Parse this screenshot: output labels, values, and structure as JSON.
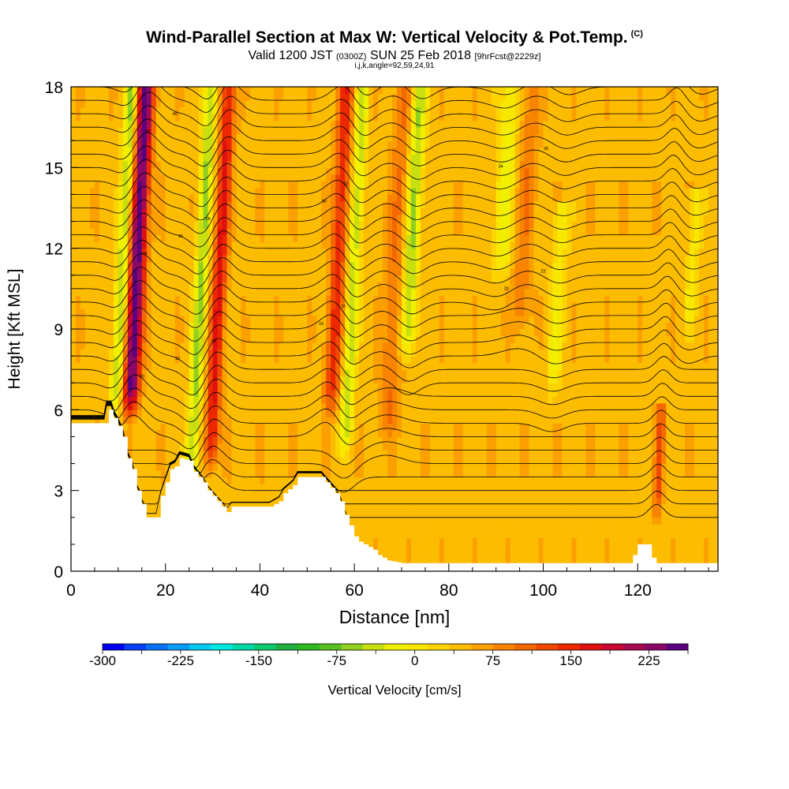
{
  "title": {
    "main": "Wind-Parallel Section at Max W: Vertical Velocity & Pot.Temp.",
    "copyright": "(C)",
    "valid_prefix": "Valid 1200 JST",
    "valid_utc": "(0300Z)",
    "valid_date": "SUN 25 Feb 2018",
    "forecast": "[9hrFcst@2229z]",
    "section_params": "i,j,k,angle=92,59,24,91"
  },
  "chart_data": {
    "type": "heatmap",
    "xlabel": "Distance [nm]",
    "ylabel": "Height [Kft MSL]",
    "xlim": [
      0,
      137
    ],
    "ylim": [
      0,
      18
    ],
    "x_ticks": [
      0,
      20,
      40,
      60,
      80,
      100,
      120
    ],
    "y_ticks": [
      0,
      3,
      6,
      9,
      12,
      15,
      18
    ],
    "colorbar": {
      "label": "Vertical Velocity [cm/s]",
      "range": [
        -300,
        262.5
      ],
      "step": 18.75,
      "tick_labels": [
        "-300",
        "-225",
        "-150",
        "-75",
        "0",
        "75",
        "150",
        "225"
      ],
      "colors": [
        "#0000f0",
        "#0a40f5",
        "#0a70f5",
        "#0a9cf5",
        "#05c8f0",
        "#00e8e0",
        "#00d8a8",
        "#10c870",
        "#20b040",
        "#30b820",
        "#58c020",
        "#90d020",
        "#c8e010",
        "#f0f000",
        "#f8e800",
        "#fcd400",
        "#fcbc00",
        "#fca000",
        "#f88400",
        "#f46800",
        "#f04800",
        "#ec2800",
        "#e01010",
        "#c80830",
        "#a80850",
        "#8a0868",
        "#5a0080"
      ]
    },
    "updrafts": [
      {
        "x": 12.5,
        "peak_w": 190,
        "base_kft": 6.0,
        "top_kft": 18,
        "width_nm": 2.6
      },
      {
        "x": 29.5,
        "peak_w": 110,
        "base_kft": 4.0,
        "top_kft": 18,
        "width_nm": 2.2
      },
      {
        "x": 55.0,
        "peak_w": 95,
        "base_kft": 6.0,
        "top_kft": 18,
        "width_nm": 2.4
      },
      {
        "x": 124.0,
        "peak_w": 70,
        "base_kft": 2.0,
        "top_kft": 5.5,
        "width_nm": 1.4
      },
      {
        "x": 67.0,
        "peak_w": 45,
        "base_kft": 5.0,
        "top_kft": 18,
        "width_nm": 3.0
      },
      {
        "x": 95.0,
        "peak_w": 40,
        "base_kft": 9.0,
        "top_kft": 18,
        "width_nm": 3.0
      }
    ],
    "downdrafts": [
      {
        "x": 9.5,
        "peak_w": -90,
        "base_kft": 6.0,
        "top_kft": 18,
        "width_nm": 2.0
      },
      {
        "x": 25.5,
        "peak_w": -90,
        "base_kft": 3.5,
        "top_kft": 18,
        "width_nm": 2.0
      },
      {
        "x": 58.0,
        "peak_w": -80,
        "base_kft": 4.5,
        "top_kft": 18,
        "width_nm": 2.0
      },
      {
        "x": 71.0,
        "peak_w": -90,
        "base_kft": 8.0,
        "top_kft": 18,
        "width_nm": 2.4
      },
      {
        "x": 91.0,
        "peak_w": -55,
        "base_kft": 11.0,
        "top_kft": 18,
        "width_nm": 3.0
      },
      {
        "x": 102.0,
        "peak_w": -45,
        "base_kft": 6.5,
        "top_kft": 13,
        "width_nm": 2.4
      },
      {
        "x": 131.0,
        "peak_w": -40,
        "base_kft": 9.0,
        "top_kft": 13.5,
        "width_nm": 2.0
      }
    ],
    "terrain_kft": [
      [
        0,
        5.5
      ],
      [
        7,
        5.5
      ],
      [
        7.5,
        6.0
      ],
      [
        8.5,
        6.0
      ],
      [
        9,
        5.7
      ],
      [
        10,
        5.4
      ],
      [
        11,
        5.0
      ],
      [
        12,
        4.2
      ],
      [
        13,
        3.8
      ],
      [
        14,
        3.0
      ],
      [
        15,
        2.5
      ],
      [
        16,
        2.0
      ],
      [
        18,
        2.0
      ],
      [
        19,
        2.8
      ],
      [
        20,
        3.3
      ],
      [
        21,
        3.8
      ],
      [
        22,
        3.9
      ],
      [
        23,
        4.2
      ],
      [
        25,
        4.1
      ],
      [
        26,
        3.7
      ],
      [
        27,
        3.5
      ],
      [
        28,
        3.3
      ],
      [
        29,
        3.0
      ],
      [
        30,
        2.8
      ],
      [
        31,
        2.6
      ],
      [
        32,
        2.4
      ],
      [
        33,
        2.2
      ],
      [
        34,
        2.4
      ],
      [
        36,
        2.4
      ],
      [
        39,
        2.4
      ],
      [
        42,
        2.4
      ],
      [
        44,
        2.6
      ],
      [
        45,
        2.9
      ],
      [
        47,
        3.2
      ],
      [
        48,
        3.5
      ],
      [
        53,
        3.5
      ],
      [
        54,
        3.3
      ],
      [
        55,
        3.1
      ],
      [
        56,
        2.9
      ],
      [
        57,
        2.6
      ],
      [
        58,
        2.1
      ],
      [
        59,
        1.7
      ],
      [
        60,
        1.3
      ],
      [
        61,
        1.1
      ],
      [
        62,
        1.0
      ],
      [
        63,
        0.9
      ],
      [
        64,
        0.8
      ],
      [
        65,
        0.6
      ],
      [
        67,
        0.4
      ],
      [
        70,
        0.3
      ],
      [
        118,
        0.3
      ],
      [
        119,
        0.6
      ],
      [
        120,
        1.0
      ],
      [
        122,
        1.0
      ],
      [
        123,
        0.5
      ],
      [
        124,
        0.3
      ],
      [
        136,
        0.3
      ],
      [
        137,
        0.3
      ]
    ],
    "theta_levels_count": 34,
    "theta_contour_labels": [
      "10",
      "12",
      "14",
      "16",
      "18",
      "20",
      "22",
      "24",
      "26",
      "28",
      "30",
      "32",
      "34",
      "36",
      "38",
      "40"
    ]
  }
}
